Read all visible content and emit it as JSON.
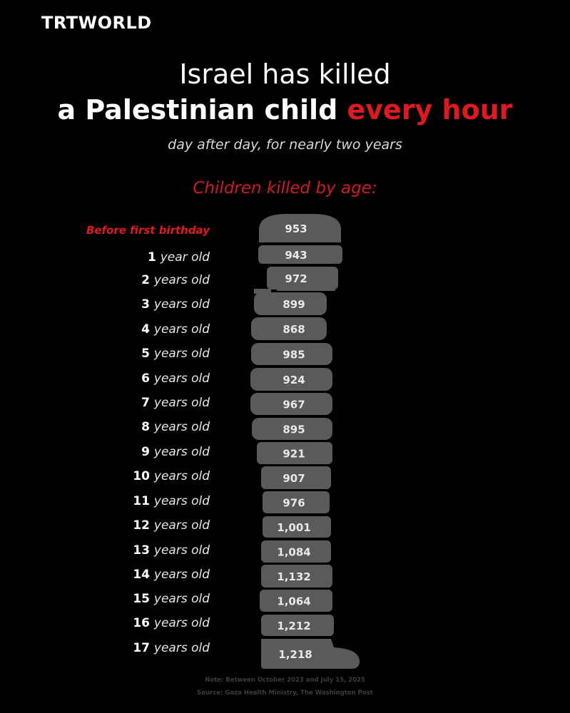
{
  "brand": {
    "logo": "TRTWORLD"
  },
  "header": {
    "line1": "Israel has killed",
    "line2_main": "a Palestinian child ",
    "line2_accent": "every hour",
    "subtitle": "day after day, for nearly two years"
  },
  "colors": {
    "accent": "#e0191e",
    "figure": "#5a5a5a",
    "background": "#000000"
  },
  "chart_data": {
    "type": "bar",
    "title": "Children killed by age:",
    "categories": [
      {
        "num": "Before first birthday",
        "unit": ""
      },
      {
        "num": "1",
        "unit": "year old"
      },
      {
        "num": "2",
        "unit": "years old"
      },
      {
        "num": "3",
        "unit": "years old"
      },
      {
        "num": "4",
        "unit": "years old"
      },
      {
        "num": "5",
        "unit": "years old"
      },
      {
        "num": "6",
        "unit": "years old"
      },
      {
        "num": "7",
        "unit": "years old"
      },
      {
        "num": "8",
        "unit": "years old"
      },
      {
        "num": "9",
        "unit": "years old"
      },
      {
        "num": "10",
        "unit": "years old"
      },
      {
        "num": "11",
        "unit": "years old"
      },
      {
        "num": "12",
        "unit": "years old"
      },
      {
        "num": "13",
        "unit": "years old"
      },
      {
        "num": "14",
        "unit": "years old"
      },
      {
        "num": "15",
        "unit": "years old"
      },
      {
        "num": "16",
        "unit": "years old"
      },
      {
        "num": "17",
        "unit": "years old"
      }
    ],
    "values": [
      953,
      943,
      972,
      899,
      868,
      985,
      924,
      967,
      895,
      921,
      907,
      976,
      1001,
      1084,
      1132,
      1064,
      1212,
      1218
    ],
    "value_labels": [
      "953",
      "943",
      "972",
      "899",
      "868",
      "985",
      "924",
      "967",
      "895",
      "921",
      "907",
      "976",
      "1,001",
      "1,084",
      "1,132",
      "1,064",
      "1,212",
      "1,218"
    ]
  },
  "footer": {
    "note": "Note: Between October 2023 and July 15, 2025",
    "source": "Source: Gaza Health Ministry, The Washington Post"
  }
}
